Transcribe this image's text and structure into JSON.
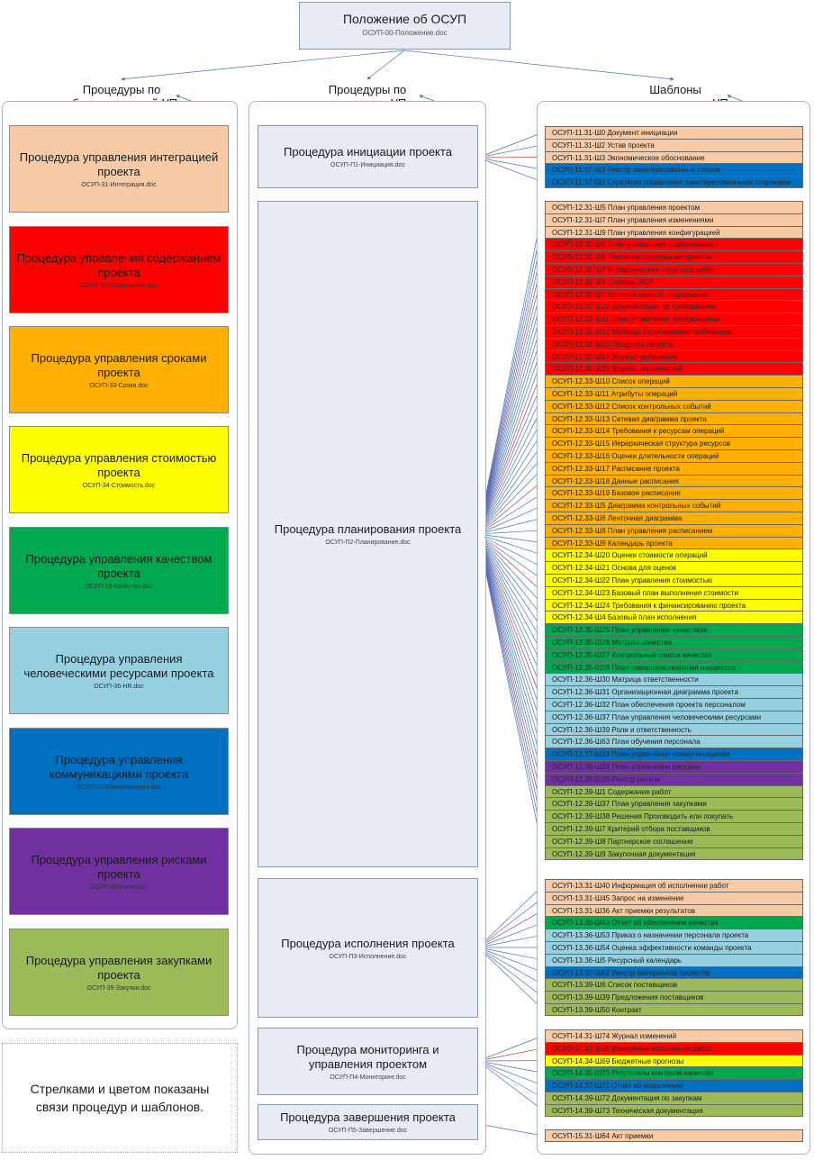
{
  "colors": {
    "peach": "#f8cba6",
    "red": "#ff0000",
    "orange": "#ffb000",
    "yellow": "#ffff00",
    "green": "#00a84f",
    "lightblue": "#97d0e0",
    "blue": "#0070c0",
    "purple": "#7030a0",
    "olive": "#9bbb59",
    "arrow_blue": "#4a72c4",
    "arrow_red": "#c0392b"
  },
  "top": {
    "title": "Положение об ОСУП",
    "file": "ОСУП-00-Положение.doc"
  },
  "headers": {
    "areas": [
      "Процедуры по",
      "областям знаний УП"
    ],
    "processes": [
      "Процедуры по",
      "процессам УП"
    ],
    "templates": [
      "Шаблоны",
      "документов для УП"
    ]
  },
  "areas": [
    {
      "name": "Процедура управления интеграцией проекта",
      "file": "ОСУП-31-Интеграция.doc",
      "color": "peach"
    },
    {
      "name": "Процедура управления содержанием проекта",
      "file": "ОСУП-32-Содержание.doc",
      "color": "red"
    },
    {
      "name": "Процедура управления сроками проекта",
      "file": "ОСУП-33-Сроки.doc",
      "color": "orange"
    },
    {
      "name": "Процедура управления стоимостью проекта",
      "file": "ОСУП-34-Стоимость.doc",
      "color": "yellow"
    },
    {
      "name": "Процедура управления качеством проекта",
      "file": "ОСУП-35-Качество.doc",
      "color": "green"
    },
    {
      "name": "Процедура управления человеческими ресурсами проекта",
      "file": "ОСУП-36-HR.doc",
      "color": "lightblue"
    },
    {
      "name": "Процедура управления коммуникациями проекта",
      "file": "ОСУП-37-Коммуникации.doc",
      "color": "blue"
    },
    {
      "name": "Процедура управления рисками проекта",
      "file": "ОСУП-38-Риски.doc",
      "color": "purple"
    },
    {
      "name": "Процедура управления закупками проекта",
      "file": "ОСУП-39-Закупки.doc",
      "color": "olive"
    }
  ],
  "processes": [
    {
      "name": "Процедура инициации проекта",
      "file": "ОСУП-П1-Инициация.doc"
    },
    {
      "name": "Процедура планирования проекта",
      "file": "ОСУП-П2-Планирование.doc"
    },
    {
      "name": "Процедура исполнения проекта",
      "file": "ОСУП-П3-Исполнение.doc"
    },
    {
      "name": "Процедура мониторинга и управления проектом",
      "file": "ОСУП-П4-Мониторинг.doc"
    },
    {
      "name": "Процедура завершения проекта",
      "file": "ОСУП-П5-Завершение.doc"
    }
  ],
  "template_groups": [
    {
      "rows": [
        {
          "t": "ОСУП-11.31-Ш0  Документ инициации",
          "c": "peach"
        },
        {
          "t": "ОСУП-11.31-Ш2  Устав проекта",
          "c": "peach"
        },
        {
          "t": "ОСУП-11.31-Ш3  Экономическое обоснование",
          "c": "peach"
        },
        {
          "t": "ОСУП-11.37-Ш3  Реестр заинтересованных сторон",
          "c": "blue"
        },
        {
          "t": "ОСУП-11.37-Ш3  Стратегия управления заинтересованными сторонами",
          "c": "blue"
        }
      ]
    },
    {
      "rows": [
        {
          "t": "ОСУП-12.31-Ш5  План управления проектом",
          "c": "peach"
        },
        {
          "t": "ОСУП-12.31-Ш7  План управления изменениями",
          "c": "peach"
        },
        {
          "t": "ОСУП-12.31-Ш9  План управления конфигурацией",
          "c": "peach"
        },
        {
          "t": "ОСУП-12.32-Ш5  План управления содержанием",
          "c": "red"
        },
        {
          "t": "ОСУП-12.32-Ш6  Описание содержания проекта",
          "c": "red"
        },
        {
          "t": "ОСУП-12.32-Ш7  Иерархическая структура работ",
          "c": "red"
        },
        {
          "t": "ОСУП-12.32-Ш8  Словарь ИСР",
          "c": "red"
        },
        {
          "t": "ОСУП-12.32-Ш9  Базовый план по содержанию",
          "c": "red"
        },
        {
          "t": "ОСУП-12.32-Ш10 Документация по требованиям",
          "c": "red"
        },
        {
          "t": "ОСУП-12.32-Ш11 План управления требованиями",
          "c": "red"
        },
        {
          "t": "ОСУП-12.32-Ш12 Матрица отслеживания требований",
          "c": "red"
        },
        {
          "t": "ОСУП-12.32-Ш13 Продукты проекта",
          "c": "red"
        },
        {
          "t": "ОСУП-12.32-Ш14 Журнал допущений",
          "c": "red"
        },
        {
          "t": "ОСУП-12.32-Ш15 Журнал ограничений",
          "c": "red"
        },
        {
          "t": "ОСУП-12.33-Ш10 Список операций",
          "c": "orange"
        },
        {
          "t": "ОСУП-12.33-Ш11 Атрибуты операций",
          "c": "orange"
        },
        {
          "t": "ОСУП-12.33-Ш12 Список контрольных событий",
          "c": "orange"
        },
        {
          "t": "ОСУП-12.33-Ш13 Сетевая диаграмма проекта",
          "c": "orange"
        },
        {
          "t": "ОСУП-12.33-Ш14 Требования к ресурсам операций",
          "c": "orange"
        },
        {
          "t": "ОСУП-12.33-Ш15 Иерархическая структура ресурсов",
          "c": "orange"
        },
        {
          "t": "ОСУП-12.33-Ш16 Оценки длительности операций",
          "c": "orange"
        },
        {
          "t": "ОСУП-12.33-Ш17 Расписание проекта",
          "c": "orange"
        },
        {
          "t": "ОСУП-12.33-Ш18 Данные расписания",
          "c": "orange"
        },
        {
          "t": "ОСУП-12.33-Ш19 Базовое расписание",
          "c": "orange"
        },
        {
          "t": "ОСУП-12.33-Ш5  Диаграмма контрольных событий",
          "c": "orange"
        },
        {
          "t": "ОСУП-12.33-Ш6  Ленточная диаграмма",
          "c": "orange"
        },
        {
          "t": "ОСУП-12.33-Ш8  План управления расписанием",
          "c": "orange"
        },
        {
          "t": "ОСУП-12.33-Ш9  Календарь проекта",
          "c": "orange"
        },
        {
          "t": "ОСУП-12.34-Ш20 Оценки стоимости операций",
          "c": "yellow"
        },
        {
          "t": "ОСУП-12.34-Ш21 Основа для оценок",
          "c": "yellow"
        },
        {
          "t": "ОСУП-12.34-Ш22 План управления стоимостью",
          "c": "yellow"
        },
        {
          "t": "ОСУП-12.34-Ш23 Базовый план выполнения стоимости",
          "c": "yellow"
        },
        {
          "t": "ОСУП-12.34-Ш24 Требования к финансированию проекта",
          "c": "yellow"
        },
        {
          "t": "ОСУП-12.34-Ш4  Базовый план исполнения",
          "c": "yellow"
        },
        {
          "t": "ОСУП-12.35-Ш25 План управления качеством",
          "c": "green"
        },
        {
          "t": "ОСУП-12.35-Ш26 Метрики качества",
          "c": "green"
        },
        {
          "t": "ОСУП-12.35-Ш27 Контрольный список качества",
          "c": "green"
        },
        {
          "t": "ОСУП-12.35-Ш28 План совершенствования процессов",
          "c": "green"
        },
        {
          "t": "ОСУП-12.36-Ш30 Матрица ответственности",
          "c": "lightblue"
        },
        {
          "t": "ОСУП-12.36-Ш31 Организационная диаграмма проекта",
          "c": "lightblue"
        },
        {
          "t": "ОСУП-12.36-Ш32 План обеспечения проекта персоналом",
          "c": "lightblue"
        },
        {
          "t": "ОСУП-12.36-Ш37 План управления человеческими ресурсами",
          "c": "lightblue"
        },
        {
          "t": "ОСУП-12.36-Ш39 Роли и ответственность",
          "c": "lightblue"
        },
        {
          "t": "ОСУП-12.36-Ш63 План обучения персонала",
          "c": "lightblue"
        },
        {
          "t": "ОСУП-12.37-Ш33 План управления коммуникациями",
          "c": "blue"
        },
        {
          "t": "ОСУП-12.38-Ш34 План управления рисками",
          "c": "purple"
        },
        {
          "t": "ОСУП-12.38-Ш35 Реестр рисков",
          "c": "purple"
        },
        {
          "t": "ОСУП-12.39-Ш1  Содержание работ",
          "c": "olive"
        },
        {
          "t": "ОСУП-12.39-Ш37 План управления закупками",
          "c": "olive"
        },
        {
          "t": "ОСУП-12.39-Ш38 Решения Производить или покупать",
          "c": "olive"
        },
        {
          "t": "ОСУП-12.39-Ш7  Критерий отбора поставщиков",
          "c": "olive"
        },
        {
          "t": "ОСУП-12.39-Ш8  Партнерское соглашение",
          "c": "olive"
        },
        {
          "t": "ОСУП-12.39-Ш9  Закупочная документация",
          "c": "olive"
        }
      ]
    },
    {
      "rows": [
        {
          "t": "ОСУП-13.31-Ш40 Информация об исполнении работ",
          "c": "peach"
        },
        {
          "t": "ОСУП-13.31-Ш45 Запрос на изменение",
          "c": "peach"
        },
        {
          "t": "ОСУП-13.31-Ш36 Акт приемки результатов",
          "c": "peach"
        },
        {
          "t": "ОСУП-13.35-Ш43 Отчет об обеспечении качества",
          "c": "green"
        },
        {
          "t": "ОСУП-13.36-Ш53 Приказ о назначении персонала проекта",
          "c": "lightblue"
        },
        {
          "t": "ОСУП-13.36-Ш54 Оценка эффективности команды проекта",
          "c": "lightblue"
        },
        {
          "t": "ОСУП-13.36-Ш5  Ресурсный календарь",
          "c": "lightblue"
        },
        {
          "t": "ОСУП-13.37-Ш62 Реестр материалов проектов",
          "c": "blue"
        },
        {
          "t": "ОСУП-13.39-Ш6  Список поставщиков",
          "c": "olive"
        },
        {
          "t": "ОСУП-13.39-Ш39 Предложения поставщиков",
          "c": "olive"
        },
        {
          "t": "ОСУП-13.39-Ш50 Контракт",
          "c": "olive"
        }
      ]
    },
    {
      "rows": [
        {
          "t": "ОСУП-14.31-Ш74 Журнал изменений",
          "c": "peach"
        },
        {
          "t": "ОСУП-14.32-Ш68 Измерение исполнения работ",
          "c": "red"
        },
        {
          "t": "ОСУП-14.34-Ш69 Бюджетные прогнозы",
          "c": "yellow"
        },
        {
          "t": "ОСУП-14.35-Ш70 Результаты контроля качества",
          "c": "green"
        },
        {
          "t": "ОСУП-14.37-Ш71 Отчет об исполнении",
          "c": "blue"
        },
        {
          "t": "ОСУП-14.39-Ш72 Документация по закупкам",
          "c": "olive"
        },
        {
          "t": "ОСУП-14.39-Ш73 Техническая документация",
          "c": "olive"
        }
      ]
    },
    {
      "rows": [
        {
          "t": "ОСУП-15.31-Ш64 Акт приемки",
          "c": "peach"
        }
      ]
    }
  ],
  "note": "Стрелками и цветом показаны связи процедур и шаблонов."
}
